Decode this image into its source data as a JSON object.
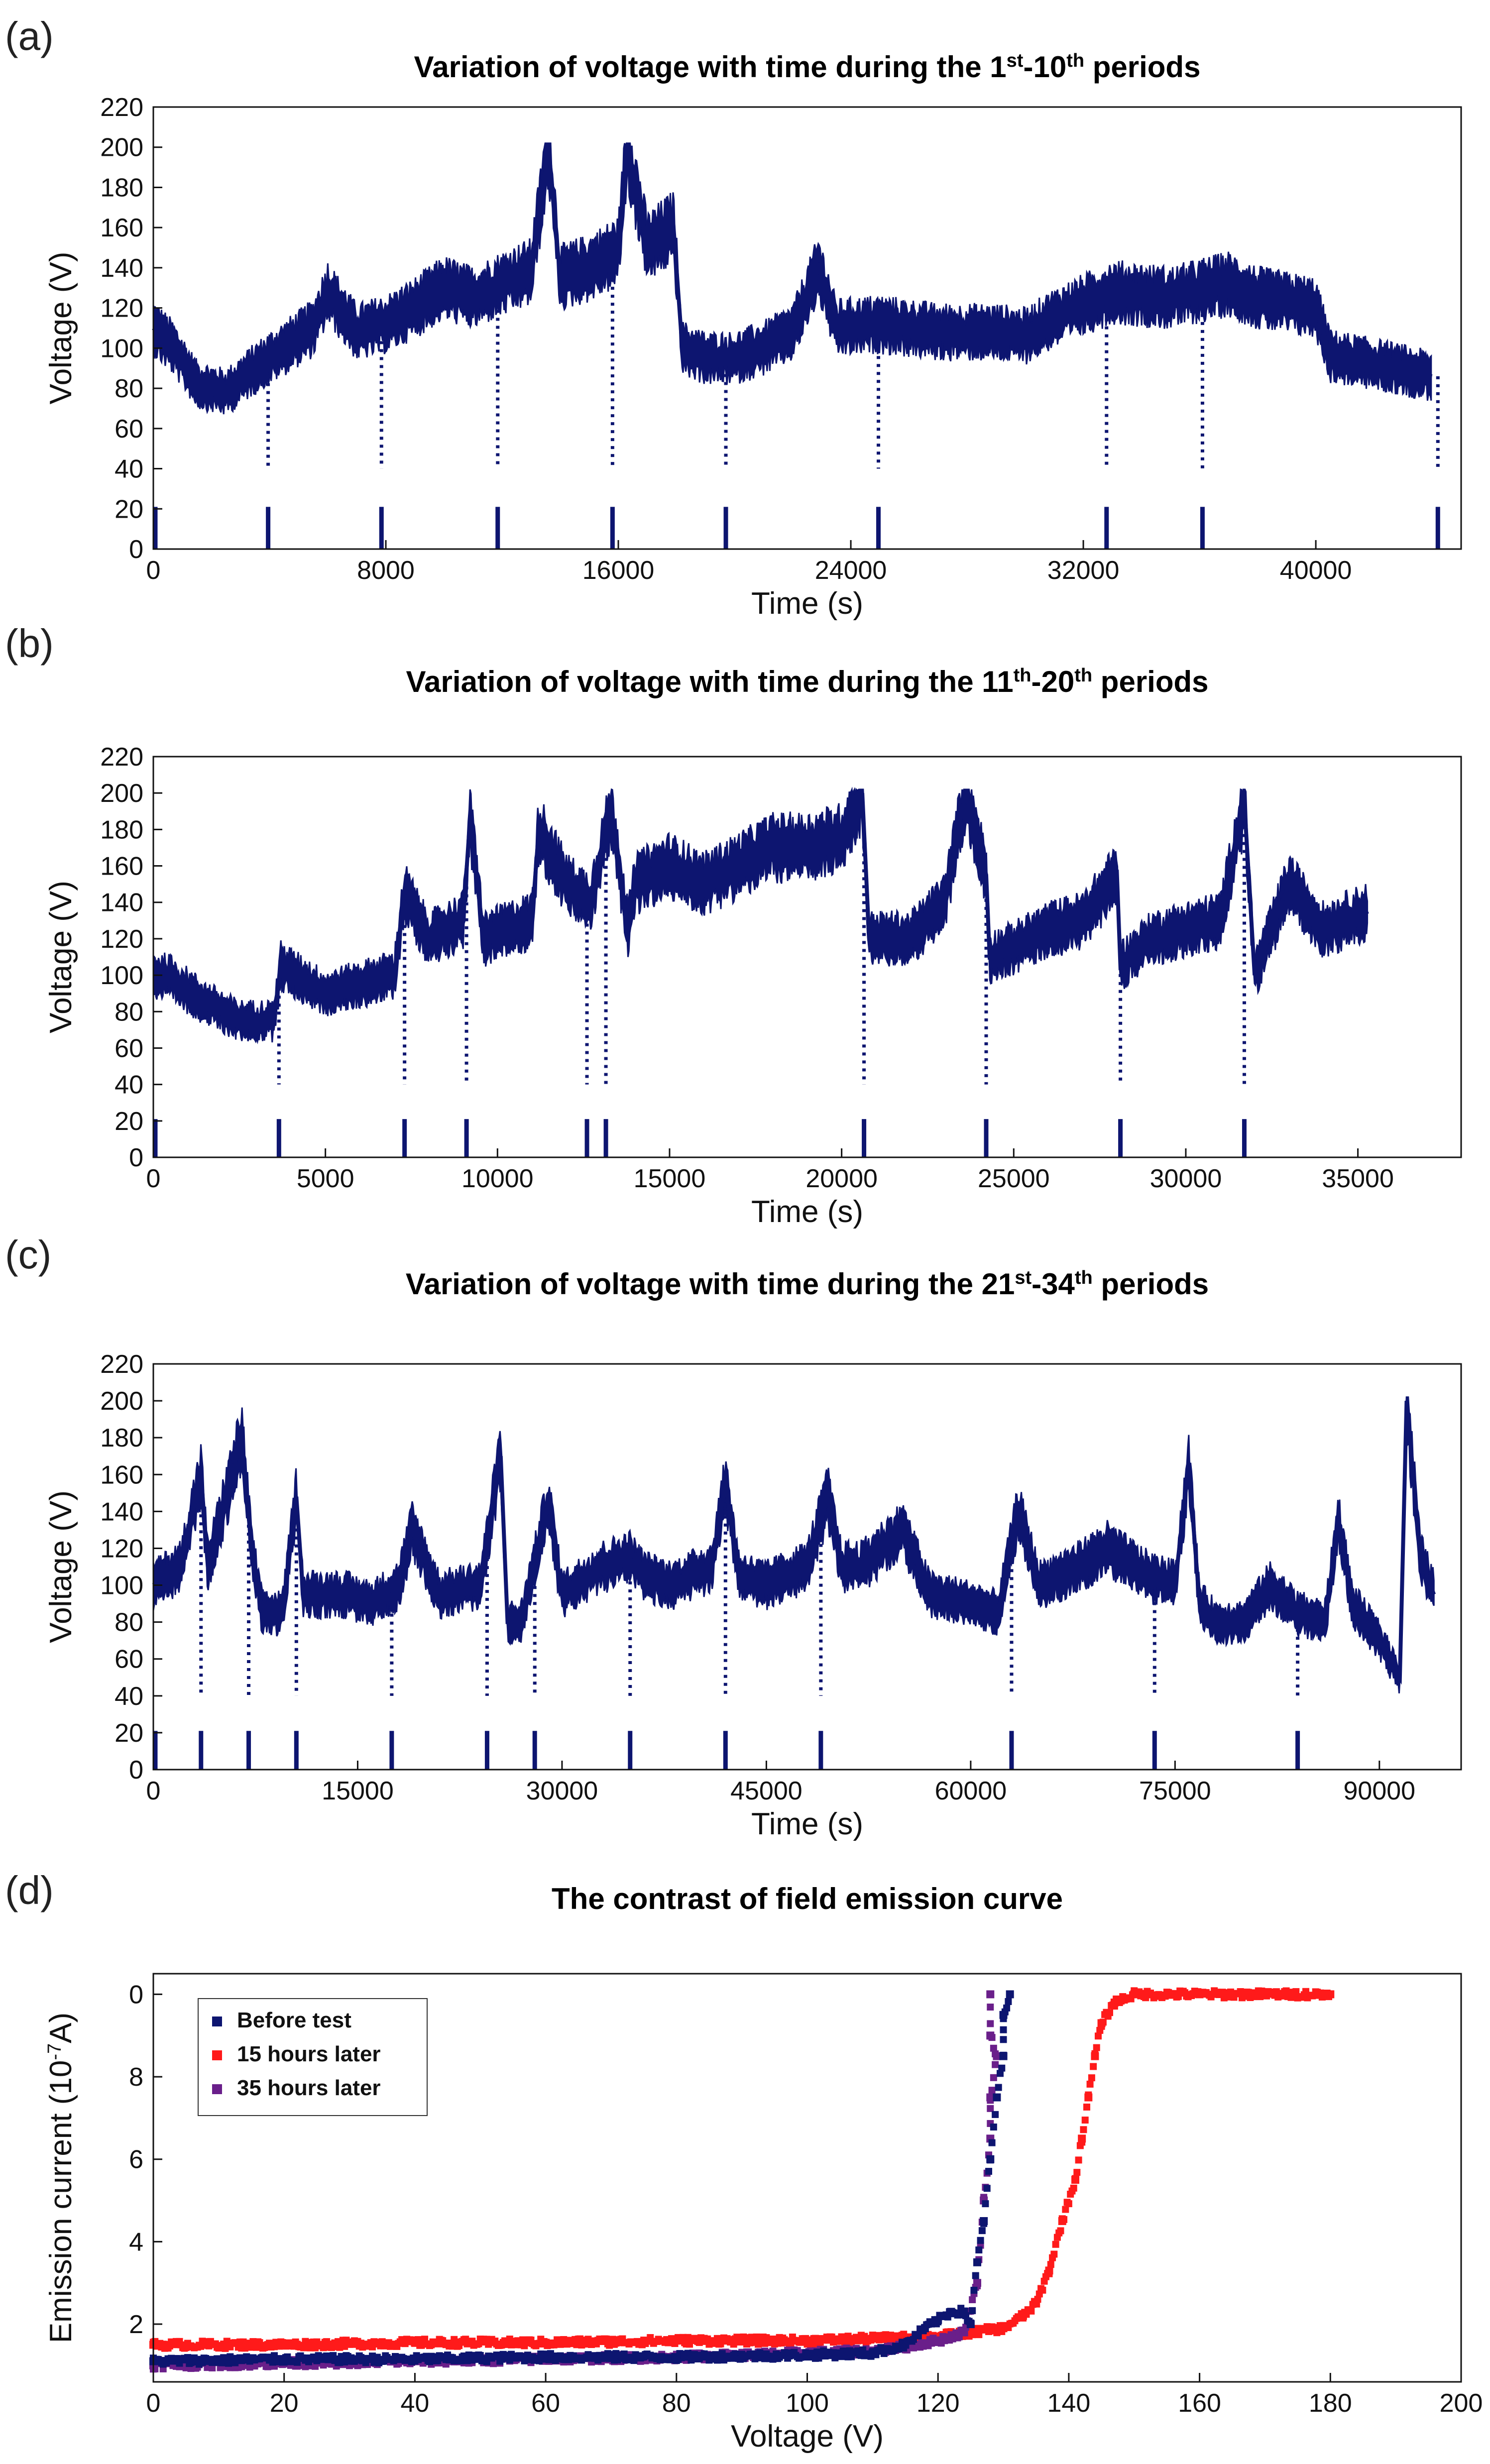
{
  "colors": {
    "navy": "#0d1570",
    "red": "#ff1a1a",
    "purple": "#6a1f8a"
  },
  "chart_data": [
    {
      "id": "a",
      "panel_label": "(a)",
      "type": "line",
      "title_pre": "Variation of voltage with time during the 1",
      "sup1": "st",
      "title_mid": "-10",
      "sup2": "th",
      "title_post": " periods",
      "xlabel": "Time (s)",
      "ylabel": "Voltage (V)",
      "xlim": [
        0,
        45000
      ],
      "ylim": [
        0,
        220
      ],
      "xticks": [
        0,
        8000,
        16000,
        24000,
        32000,
        40000
      ],
      "yticks": [
        0,
        20,
        40,
        60,
        80,
        100,
        120,
        140,
        160,
        180,
        200,
        220
      ],
      "series_name": "Voltage",
      "values_approx": [
        [
          0,
          110
        ],
        [
          700,
          100
        ],
        [
          1500,
          82
        ],
        [
          2500,
          78
        ],
        [
          3500,
          90
        ],
        [
          4500,
          100
        ],
        [
          5500,
          110
        ],
        [
          6000,
          128
        ],
        [
          7000,
          108
        ],
        [
          8000,
          112
        ],
        [
          9000,
          120
        ],
        [
          10000,
          130
        ],
        [
          11000,
          125
        ],
        [
          12000,
          132
        ],
        [
          13000,
          138
        ],
        [
          13600,
          200
        ],
        [
          14000,
          135
        ],
        [
          15000,
          140
        ],
        [
          16000,
          148
        ],
        [
          16300,
          200
        ],
        [
          17000,
          150
        ],
        [
          17900,
          160
        ],
        [
          18200,
          100
        ],
        [
          19000,
          95
        ],
        [
          20000,
          95
        ],
        [
          21000,
          100
        ],
        [
          22000,
          108
        ],
        [
          22900,
          140
        ],
        [
          23500,
          110
        ],
        [
          25000,
          112
        ],
        [
          27000,
          108
        ],
        [
          29000,
          108
        ],
        [
          30000,
          106
        ],
        [
          31000,
          115
        ],
        [
          33000,
          128
        ],
        [
          35000,
          125
        ],
        [
          37000,
          132
        ],
        [
          38000,
          125
        ],
        [
          40000,
          120
        ],
        [
          40500,
          96
        ],
        [
          42000,
          92
        ],
        [
          44000,
          86
        ]
      ],
      "drop_times": [
        3950,
        7850,
        11850,
        15800,
        19700,
        24950,
        32800,
        36100,
        44200
      ],
      "period_marks": [
        0,
        3950,
        7850,
        11850,
        15800,
        19700,
        24950,
        32800,
        36100,
        44200
      ]
    },
    {
      "id": "b",
      "panel_label": "(b)",
      "type": "line",
      "title_pre": "Variation of voltage with time during the 11",
      "sup1": "th",
      "title_mid": "-20",
      "sup2": "th",
      "title_post": " periods",
      "xlabel": "Time (s)",
      "ylabel": "Voltage (V)",
      "xlim": [
        0,
        38000
      ],
      "ylim": [
        0,
        220
      ],
      "xticks": [
        0,
        5000,
        10000,
        15000,
        20000,
        25000,
        30000,
        35000
      ],
      "yticks": [
        0,
        20,
        40,
        60,
        80,
        100,
        120,
        140,
        160,
        180,
        200,
        220
      ],
      "series_name": "Voltage",
      "values_approx": [
        [
          0,
          100
        ],
        [
          500,
          98
        ],
        [
          1500,
          85
        ],
        [
          2500,
          75
        ],
        [
          3500,
          75
        ],
        [
          3700,
          105
        ],
        [
          5000,
          90
        ],
        [
          6000,
          95
        ],
        [
          7000,
          100
        ],
        [
          7300,
          145
        ],
        [
          8000,
          120
        ],
        [
          9000,
          130
        ],
        [
          9200,
          185
        ],
        [
          9600,
          120
        ],
        [
          11000,
          130
        ],
        [
          11200,
          180
        ],
        [
          12000,
          150
        ],
        [
          12700,
          140
        ],
        [
          13300,
          190
        ],
        [
          13800,
          125
        ],
        [
          14000,
          150
        ],
        [
          15000,
          160
        ],
        [
          16000,
          150
        ],
        [
          17000,
          160
        ],
        [
          18000,
          170
        ],
        [
          19000,
          170
        ],
        [
          20000,
          175
        ],
        [
          20600,
          200
        ],
        [
          20800,
          120
        ],
        [
          22000,
          120
        ],
        [
          23000,
          140
        ],
        [
          23600,
          200
        ],
        [
          24200,
          155
        ],
        [
          24300,
          110
        ],
        [
          25000,
          115
        ],
        [
          26000,
          125
        ],
        [
          27000,
          130
        ],
        [
          28000,
          155
        ],
        [
          28100,
          105
        ],
        [
          29000,
          120
        ],
        [
          30000,
          125
        ],
        [
          31000,
          130
        ],
        [
          31700,
          195
        ],
        [
          32000,
          100
        ],
        [
          33000,
          150
        ],
        [
          34000,
          125
        ],
        [
          35300,
          135
        ]
      ],
      "drop_times": [
        3650,
        7300,
        9100,
        12600,
        13150,
        20650,
        24200,
        28100,
        31700
      ],
      "period_marks": [
        0,
        3650,
        7300,
        9100,
        12600,
        13150,
        20650,
        24200,
        28100,
        31700
      ]
    },
    {
      "id": "c",
      "panel_label": "(c)",
      "type": "line",
      "title_pre": "Variation of voltage with time during the 21",
      "sup1": "st",
      "title_mid": "-34",
      "sup2": "th",
      "title_post": " periods",
      "xlabel": "Time (s)",
      "ylabel": "Voltage (V)",
      "xlim": [
        0,
        96000
      ],
      "ylim": [
        0,
        220
      ],
      "xticks": [
        0,
        15000,
        30000,
        45000,
        60000,
        75000,
        90000
      ],
      "yticks": [
        0,
        20,
        40,
        60,
        80,
        100,
        120,
        140,
        160,
        180,
        200,
        220
      ],
      "series_name": "Voltage",
      "values_approx": [
        [
          0,
          100
        ],
        [
          2000,
          110
        ],
        [
          3500,
          160
        ],
        [
          4000,
          110
        ],
        [
          6500,
          180
        ],
        [
          7200,
          120
        ],
        [
          8000,
          85
        ],
        [
          9500,
          85
        ],
        [
          10500,
          148
        ],
        [
          11000,
          95
        ],
        [
          14000,
          95
        ],
        [
          16000,
          90
        ],
        [
          18000,
          100
        ],
        [
          19000,
          130
        ],
        [
          21000,
          95
        ],
        [
          24000,
          100
        ],
        [
          25500,
          170
        ],
        [
          26000,
          80
        ],
        [
          27000,
          80
        ],
        [
          29000,
          145
        ],
        [
          30000,
          95
        ],
        [
          33000,
          110
        ],
        [
          35000,
          115
        ],
        [
          36000,
          105
        ],
        [
          38000,
          100
        ],
        [
          41000,
          110
        ],
        [
          42000,
          155
        ],
        [
          43000,
          105
        ],
        [
          45000,
          100
        ],
        [
          48000,
          110
        ],
        [
          49500,
          148
        ],
        [
          50500,
          110
        ],
        [
          52000,
          110
        ],
        [
          55000,
          130
        ],
        [
          57000,
          95
        ],
        [
          60000,
          90
        ],
        [
          62000,
          85
        ],
        [
          63500,
          140
        ],
        [
          65000,
          100
        ],
        [
          68000,
          110
        ],
        [
          70000,
          120
        ],
        [
          73000,
          105
        ],
        [
          75000,
          100
        ],
        [
          76000,
          165
        ],
        [
          76800,
          90
        ],
        [
          78000,
          80
        ],
        [
          80000,
          80
        ],
        [
          82000,
          100
        ],
        [
          84000,
          85
        ],
        [
          86000,
          80
        ],
        [
          87000,
          135
        ],
        [
          88000,
          90
        ],
        [
          90000,
          70
        ],
        [
          91500,
          50
        ],
        [
          92000,
          200
        ],
        [
          93000,
          115
        ],
        [
          94000,
          95
        ]
      ],
      "drop_times": [
        3500,
        7000,
        10500,
        17500,
        24500,
        28000,
        35000,
        42000,
        49000,
        63000,
        73500,
        84000
      ],
      "period_marks": [
        0,
        3500,
        7000,
        10500,
        17500,
        24500,
        28000,
        35000,
        42000,
        49000,
        63000,
        73500,
        84000
      ]
    },
    {
      "id": "d",
      "panel_label": "(d)",
      "type": "scatter",
      "title": "The contrast of field emission curve",
      "xlabel": "Voltage (V)",
      "ylabel": "Emission current (10",
      "ylabel_sup": "-7",
      "ylabel_post": "A)",
      "xlim": [
        0,
        200
      ],
      "ylim": [
        0.6,
        10.5
      ],
      "xticks": [
        0,
        20,
        40,
        60,
        80,
        100,
        120,
        140,
        160,
        180,
        200
      ],
      "yticks": [
        2,
        4,
        6,
        8
      ],
      "ytick_labels": [
        "2",
        "4",
        "6",
        "8",
        "0"
      ],
      "ytick_top_value": 10,
      "legend_position": "top-left",
      "series": [
        {
          "name": "Before test",
          "color_key": "navy",
          "points": [
            [
              0,
              1.1
            ],
            [
              20,
              1.15
            ],
            [
              40,
              1.15
            ],
            [
              60,
              1.2
            ],
            [
              80,
              1.2
            ],
            [
              100,
              1.25
            ],
            [
              110,
              1.3
            ],
            [
              115,
              1.5
            ],
            [
              118,
              1.9
            ],
            [
              120,
              2.1
            ],
            [
              122,
              2.3
            ],
            [
              124,
              2.3
            ],
            [
              125,
              2.0
            ],
            [
              126,
              3.5
            ],
            [
              127,
              4.5
            ],
            [
              128,
              6.0
            ],
            [
              129,
              7.5
            ],
            [
              130,
              8.5
            ],
            [
              130,
              9.5
            ],
            [
              131,
              10.0
            ]
          ]
        },
        {
          "name": "15 hours later",
          "color_key": "red",
          "points": [
            [
              0,
              1.5
            ],
            [
              20,
              1.5
            ],
            [
              40,
              1.55
            ],
            [
              60,
              1.55
            ],
            [
              80,
              1.6
            ],
            [
              100,
              1.6
            ],
            [
              110,
              1.65
            ],
            [
              120,
              1.7
            ],
            [
              125,
              1.8
            ],
            [
              130,
              1.9
            ],
            [
              133,
              2.2
            ],
            [
              135,
              2.5
            ],
            [
              137,
              3.3
            ],
            [
              139,
              4.5
            ],
            [
              141,
              5.5
            ],
            [
              142,
              6.5
            ],
            [
              143,
              7.5
            ],
            [
              144,
              8.5
            ],
            [
              145,
              9.3
            ],
            [
              147,
              9.8
            ],
            [
              150,
              10.0
            ],
            [
              160,
              10.0
            ],
            [
              170,
              10.0
            ],
            [
              180,
              10.0
            ]
          ]
        },
        {
          "name": "35 hours later",
          "color_key": "purple",
          "points": [
            [
              0,
              1.0
            ],
            [
              20,
              1.05
            ],
            [
              40,
              1.1
            ],
            [
              60,
              1.15
            ],
            [
              80,
              1.2
            ],
            [
              100,
              1.3
            ],
            [
              110,
              1.35
            ],
            [
              115,
              1.45
            ],
            [
              120,
              1.6
            ],
            [
              124,
              1.8
            ],
            [
              126,
              3.0
            ],
            [
              127,
              5.0
            ],
            [
              128,
              6.5
            ],
            [
              128,
              7.5
            ],
            [
              129,
              8.5
            ],
            [
              128,
              9.0
            ],
            [
              128,
              10.0
            ]
          ]
        }
      ]
    }
  ]
}
